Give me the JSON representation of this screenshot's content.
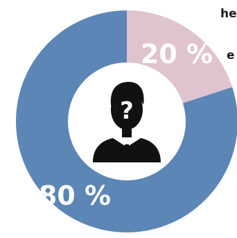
{
  "chart_data": {
    "type": "pie",
    "style": "donut",
    "categories": [
      "segment-a",
      "segment-b"
    ],
    "values": [
      20,
      80
    ],
    "data_labels": [
      "20 %",
      "80 %"
    ],
    "colors": [
      "#dfc3cf",
      "#5b86b6"
    ],
    "center_icon": "anonymous-person-question-icon",
    "title": "",
    "legend": "none"
  },
  "cut_off_text": [
    "he",
    "e"
  ]
}
